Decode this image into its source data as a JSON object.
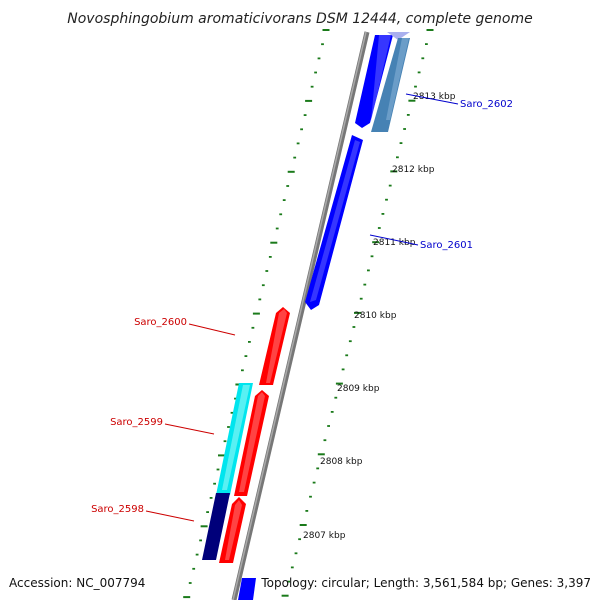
{
  "title": "Novosphingobium aromaticivorans DSM 12444, complete genome",
  "footer": {
    "accession": "Accession: NC_007794",
    "topology": "Topology: circular; Length: 3,561,584 bp; Genes: 3,397"
  },
  "scale": {
    "unit": "kbp",
    "labels": [
      "2813 kbp",
      "2812 kbp",
      "2811 kbp",
      "2810 kbp",
      "2809 kbp",
      "2808 kbp",
      "2807 kbp"
    ]
  },
  "genes": {
    "forward": [
      {
        "name": "Saro_2602",
        "color": "#0000ff"
      },
      {
        "name": "Saro_2601",
        "color": "#0000ff"
      }
    ],
    "reverse": [
      {
        "name": "Saro_2600",
        "color": "#ff0000"
      },
      {
        "name": "Saro_2599",
        "color": "#ff0000"
      },
      {
        "name": "Saro_2598",
        "color": "#ff0000"
      }
    ]
  },
  "colors": {
    "forward_label": "#0000cc",
    "reverse_label": "#cc0000",
    "tick": "#1a7a1a",
    "backbone": "#888888",
    "cds_blue": "#0000ff",
    "cds_red": "#ff0000",
    "cds_cyan": "#00e5ee",
    "cds_navy": "#00007a",
    "cds_steel": "#4682b4",
    "cds_lavender": "#aab0ee"
  }
}
